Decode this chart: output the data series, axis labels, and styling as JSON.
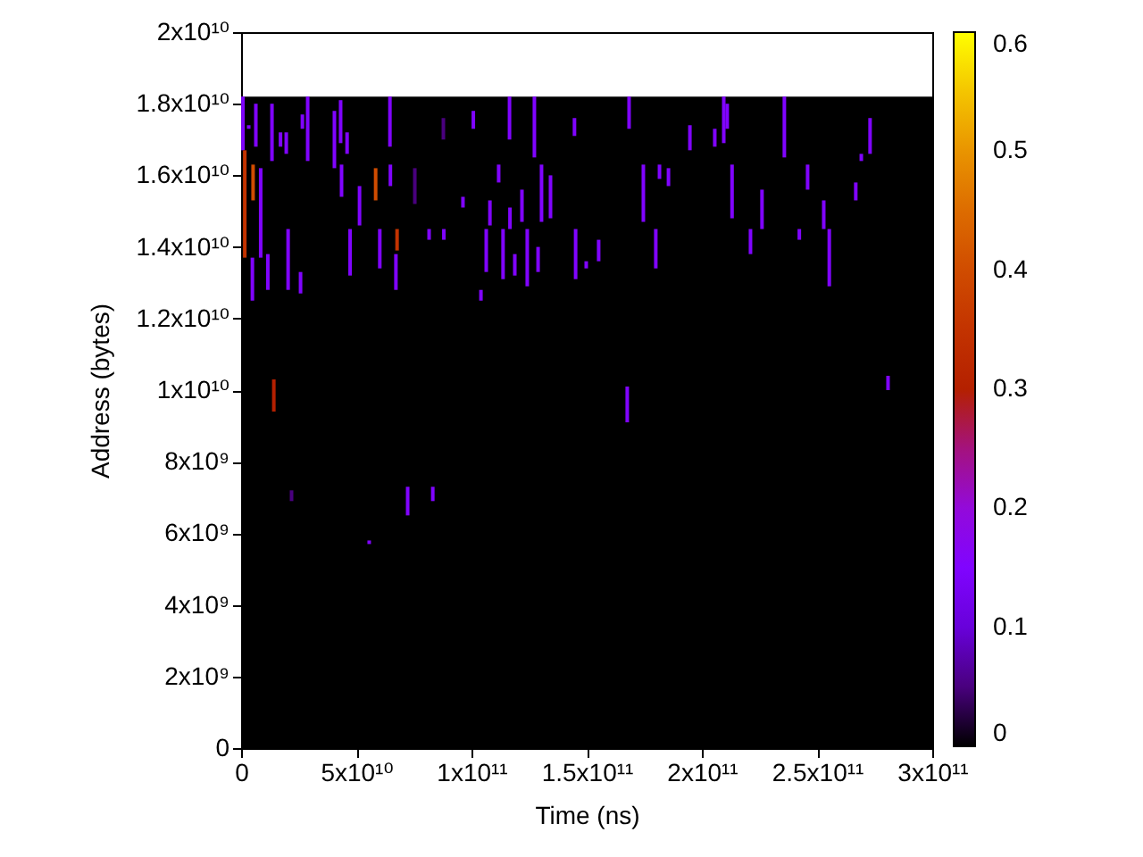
{
  "chart_data": {
    "type": "bar",
    "xlabel": "Time (ns)",
    "ylabel": "Address (bytes)",
    "xlim": [
      0,
      300000000000.0
    ],
    "xticks": [
      0,
      {
        "value": 50000000000.0,
        "label": "5x10¹⁰"
      },
      {
        "value": 100000000000.0,
        "label": "1x10¹¹"
      },
      {
        "value": 150000000000.0,
        "label": "1.5x10¹¹"
      },
      {
        "value": 200000000000.0,
        "label": "2x10¹¹"
      },
      {
        "value": 250000000000.0,
        "label": "2.5x10¹¹"
      },
      {
        "value": 300000000000.0,
        "label": "3x10¹¹"
      }
    ],
    "ylim": [
      0,
      20000000000.0
    ],
    "yticks": [
      0,
      {
        "value": 2000000000.0,
        "label": "2x10⁹"
      },
      {
        "value": 4000000000.0,
        "label": "4x10⁹"
      },
      {
        "value": 6000000000.0,
        "label": "6x10⁹"
      },
      {
        "value": 8000000000.0,
        "label": "8x10⁹"
      },
      {
        "value": 10000000000.0,
        "label": "1x10¹⁰"
      },
      {
        "value": 12000000000.0,
        "label": "1.2x10¹⁰"
      },
      {
        "value": 14000000000.0,
        "label": "1.4x10¹⁰"
      },
      {
        "value": 16000000000.0,
        "label": "1.6x10¹⁰"
      },
      {
        "value": 18000000000.0,
        "label": "1.8x10¹⁰"
      },
      {
        "value": 20000000000.0,
        "label": "2x10¹⁰"
      }
    ],
    "clim": [
      0,
      0.6
    ],
    "cticks": [
      0,
      0.1,
      0.2,
      0.3,
      0.4,
      0.5,
      0.6
    ],
    "bands": [
      {
        "axis": "y",
        "from": 0,
        "to": 18200000000.0,
        "color": "#000000"
      }
    ],
    "x": [
      800000000.0,
      1600000000.0,
      3300000000.0,
      4900000000.0,
      5200000000.0,
      6400000000.0,
      8500000000.0,
      11600000000.0,
      13400000000.0,
      14200000000.0,
      17100000000.0,
      19600000000.0,
      20400000000.0,
      21900000000.0,
      25800000000.0,
      26600000000.0,
      28900000000.0,
      40500000000.0,
      43200000000.0,
      43600000000.0,
      46000000000.0,
      47300000000.0,
      51400000000.0,
      55600000000.0,
      58400000000.0,
      60200000000.0,
      64600000000.0,
      64800000000.0,
      67200000000.0,
      67700000000.0,
      72300000000.0,
      75400000000.0,
      81600000000.0,
      83200000000.0,
      87800000000.0,
      88000000000.0,
      96300000000.0,
      100800000000.0,
      104100000000.0,
      106400000000.0,
      108000000000.0,
      111800000000.0,
      113700000000.0,
      116500000000.0,
      116700000000.0,
      118800000000.0,
      121900000000.0,
      124200000000.0,
      127300000000.0,
      128900000000.0,
      130400000000.0,
      134300000000.0,
      144700000000.0,
      145200000000.0,
      149800000000.0,
      155200000000.0,
      167600000000.0,
      168400000000.0,
      174600000000.0,
      180000000000.0,
      181600000000.0,
      185500000000.0,
      194800000000.0,
      205600000000.0,
      209500000000.0,
      211000000000.0,
      213100000000.0,
      221100000000.0,
      226100000000.0,
      235800000000.0,
      242300000000.0,
      245900000000.0,
      252900000000.0,
      255300000000.0,
      266800000000.0,
      269200000000.0,
      273000000000.0,
      280800000000.0
    ],
    "base": [
      16700000000.0,
      13700000000.0,
      17300000000.0,
      12500000000.0,
      15300000000.0,
      16800000000.0,
      13700000000.0,
      12800000000.0,
      16400000000.0,
      9400000000.0,
      16800000000.0,
      16600000000.0,
      12800000000.0,
      6900000000.0,
      12700000000.0,
      17300000000.0,
      16400000000.0,
      16200000000.0,
      16900000000.0,
      15400000000.0,
      16600000000.0,
      13200000000.0,
      14600000000.0,
      5700000000.0,
      15300000000.0,
      13400000000.0,
      16800000000.0,
      15700000000.0,
      12800000000.0,
      13900000000.0,
      6500000000.0,
      15200000000.0,
      14200000000.0,
      6900000000.0,
      17000000000.0,
      14200000000.0,
      15100000000.0,
      17300000000.0,
      12500000000.0,
      13300000000.0,
      14600000000.0,
      15800000000.0,
      13100000000.0,
      17000000000.0,
      14500000000.0,
      13200000000.0,
      14700000000.0,
      12900000000.0,
      16500000000.0,
      13300000000.0,
      14700000000.0,
      14800000000.0,
      17100000000.0,
      13100000000.0,
      13400000000.0,
      13600000000.0,
      9100000000.0,
      17300000000.0,
      14700000000.0,
      13400000000.0,
      15900000000.0,
      15700000000.0,
      16700000000.0,
      16800000000.0,
      16900000000.0,
      17300000000.0,
      14800000000.0,
      13800000000.0,
      14500000000.0,
      16500000000.0,
      14200000000.0,
      15600000000.0,
      14500000000.0,
      12900000000.0,
      15300000000.0,
      16400000000.0,
      16600000000.0,
      10000000000.0
    ],
    "values": [
      1500000000.0,
      3000000000.0,
      100000000.0,
      1200000000.0,
      1000000000.0,
      1200000000.0,
      2500000000.0,
      1000000000.0,
      1600000000.0,
      900000000.0,
      400000000.0,
      600000000.0,
      1700000000.0,
      300000000.0,
      600000000.0,
      400000000.0,
      1800000000.0,
      1600000000.0,
      1200000000.0,
      900000000.0,
      600000000.0,
      1300000000.0,
      1100000000.0,
      100000000.0,
      900000000.0,
      1100000000.0,
      1400000000.0,
      600000000.0,
      1000000000.0,
      600000000.0,
      800000000.0,
      1000000000.0,
      300000000.0,
      400000000.0,
      600000000.0,
      300000000.0,
      300000000.0,
      500000000.0,
      300000000.0,
      1200000000.0,
      700000000.0,
      500000000.0,
      1400000000.0,
      1200000000.0,
      600000000.0,
      600000000.0,
      900000000.0,
      1600000000.0,
      1700000000.0,
      700000000.0,
      1600000000.0,
      1200000000.0,
      500000000.0,
      1400000000.0,
      200000000.0,
      600000000.0,
      1000000000.0,
      900000000.0,
      1600000000.0,
      1100000000.0,
      400000000.0,
      500000000.0,
      700000000.0,
      500000000.0,
      1300000000.0,
      700000000.0,
      1500000000.0,
      700000000.0,
      1100000000.0,
      1700000000.0,
      300000000.0,
      700000000.0,
      800000000.0,
      1600000000.0,
      500000000.0,
      200000000.0,
      1000000000.0,
      400000000.0
    ],
    "cvalues": [
      0.15,
      0.35,
      0.15,
      0.15,
      0.4,
      0.15,
      0.15,
      0.15,
      0.15,
      0.3,
      0.15,
      0.15,
      0.15,
      0.05,
      0.15,
      0.15,
      0.15,
      0.15,
      0.15,
      0.15,
      0.15,
      0.15,
      0.15,
      0.15,
      0.4,
      0.15,
      0.15,
      0.15,
      0.15,
      0.35,
      0.15,
      0.05,
      0.15,
      0.15,
      0.05,
      0.15,
      0.15,
      0.15,
      0.15,
      0.15,
      0.15,
      0.15,
      0.15,
      0.15,
      0.15,
      0.15,
      0.15,
      0.15,
      0.15,
      0.15,
      0.15,
      0.15,
      0.15,
      0.15,
      0.15,
      0.15,
      0.15,
      0.15,
      0.15,
      0.15,
      0.15,
      0.15,
      0.15,
      0.15,
      0.15,
      0.15,
      0.15,
      0.15,
      0.15,
      0.15,
      0.15,
      0.15,
      0.15,
      0.15,
      0.15,
      0.15,
      0.15,
      0.15
    ]
  }
}
